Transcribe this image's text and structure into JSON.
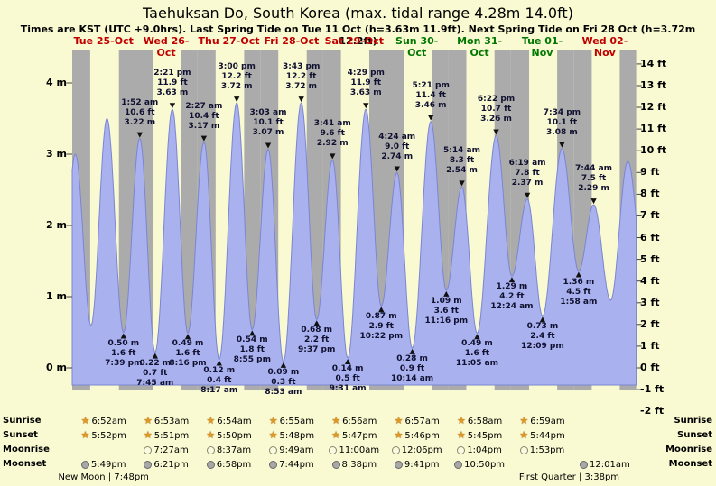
{
  "title": "Taehuksan Do, South Korea (max. tidal range 4.28m 14.0ft)",
  "subtitle": "Times are KST (UTC +9.0hrs). Last Spring Tide on Tue 11 Oct (h=3.63m 11.9ft). Next Spring Tide on Fri 28 Oct (h=3.72m 12.2ft)",
  "days": [
    {
      "label": "Tue 25-Oct",
      "color": "#c00000"
    },
    {
      "label": "Wed 26-Oct",
      "color": "#c00000"
    },
    {
      "label": "Thu 27-Oct",
      "color": "#c00000"
    },
    {
      "label": "Fri 28-Oct",
      "color": "#c00000"
    },
    {
      "label": "Sat 29-Oct",
      "color": "#c00000"
    },
    {
      "label": "Sun 30-Oct",
      "color": "#007700"
    },
    {
      "label": "Mon 31-Oct",
      "color": "#007700"
    },
    {
      "label": "Tue 01-Nov",
      "color": "#007700"
    },
    {
      "label": "Wed 02-Nov",
      "color": "#c00000"
    }
  ],
  "y_axis": {
    "left_labels": [
      "4 m",
      "3 m",
      "2 m",
      "1 m",
      "0 m"
    ],
    "right_labels": [
      "14 ft",
      "13 ft",
      "12 ft",
      "11 ft",
      "10 ft",
      "9 ft",
      "8 ft",
      "7 ft",
      "6 ft",
      "5 ft",
      "4 ft",
      "3 ft",
      "2 ft",
      "1 ft",
      "0 ft",
      "-1 ft",
      "-2 ft"
    ]
  },
  "chart_data": {
    "type": "area",
    "description": "Semidiurnal tide height curve over 9 days, day/night bands, labeled high and low tides",
    "y_unit_left": "m",
    "y_unit_right": "ft",
    "ylim_m": [
      -0.33,
      4.47
    ],
    "x_range_days": 9,
    "tide_events": [
      {
        "day": 0,
        "type": "low",
        "t_hours": 19.65,
        "height_m": 0.5,
        "height_ft": 1.6,
        "time": "7:39 pm",
        "lines": [
          "0.50 m",
          "1.6 ft",
          "7:39 pm"
        ]
      },
      {
        "day": 1,
        "type": "high",
        "t_hours": 25.87,
        "height_m": 3.22,
        "height_ft": 10.6,
        "time": "1:52 am",
        "lines": [
          "1:52 am",
          "10.6 ft",
          "3.22 m"
        ]
      },
      {
        "day": 1,
        "type": "low",
        "t_hours": 31.75,
        "height_m": 0.22,
        "height_ft": 0.7,
        "time": "7:45 am",
        "lines": [
          "0.22 m",
          "0.7 ft",
          "7:45 am"
        ]
      },
      {
        "day": 1,
        "type": "high",
        "t_hours": 38.35,
        "height_m": 3.63,
        "height_ft": 11.9,
        "time": "2:21 pm",
        "lines": [
          "2:21 pm",
          "11.9 ft",
          "3.63 m"
        ]
      },
      {
        "day": 1,
        "type": "low",
        "t_hours": 44.27,
        "height_m": 0.49,
        "height_ft": 1.6,
        "time": "8:16 pm",
        "lines": [
          "0.49 m",
          "1.6 ft",
          "8:16 pm"
        ]
      },
      {
        "day": 2,
        "type": "high",
        "t_hours": 50.45,
        "height_m": 3.17,
        "height_ft": 10.4,
        "time": "2:27 am",
        "lines": [
          "2:27 am",
          "10.4 ft",
          "3.17 m"
        ]
      },
      {
        "day": 2,
        "type": "low",
        "t_hours": 56.28,
        "height_m": 0.12,
        "height_ft": 0.4,
        "time": "8:17 am",
        "lines": [
          "0.12 m",
          "0.4 ft",
          "8:17 am"
        ]
      },
      {
        "day": 2,
        "type": "high",
        "t_hours": 63.0,
        "height_m": 3.72,
        "height_ft": 12.2,
        "time": "3:00 pm",
        "lines": [
          "3:00 pm",
          "12.2 ft",
          "3.72 m"
        ]
      },
      {
        "day": 2,
        "type": "low",
        "t_hours": 68.92,
        "height_m": 0.54,
        "height_ft": 1.8,
        "time": "8:55 pm",
        "lines": [
          "0.54 m",
          "1.8 ft",
          "8:55 pm"
        ]
      },
      {
        "day": 3,
        "type": "high",
        "t_hours": 75.05,
        "height_m": 3.07,
        "height_ft": 10.1,
        "time": "3:03 am",
        "lines": [
          "3:03 am",
          "10.1 ft",
          "3.07 m"
        ]
      },
      {
        "day": 3,
        "type": "low",
        "t_hours": 80.88,
        "height_m": 0.09,
        "height_ft": 0.3,
        "time": "8:53 am",
        "lines": [
          "0.09 m",
          "0.3 ft",
          "8:53 am"
        ]
      },
      {
        "day": 3,
        "type": "high",
        "t_hours": 87.72,
        "height_m": 3.72,
        "height_ft": 12.2,
        "time": "3:43 pm",
        "lines": [
          "3:43 pm",
          "12.2 ft",
          "3.72 m"
        ]
      },
      {
        "day": 3,
        "type": "low",
        "t_hours": 93.62,
        "height_m": 0.68,
        "height_ft": 2.2,
        "time": "9:37 pm",
        "lines": [
          "0.68 m",
          "2.2 ft",
          "9:37 pm"
        ]
      },
      {
        "day": 4,
        "type": "high",
        "t_hours": 99.68,
        "height_m": 2.92,
        "height_ft": 9.6,
        "time": "3:41 am",
        "lines": [
          "3:41 am",
          "9.6 ft",
          "2.92 m"
        ]
      },
      {
        "day": 4,
        "type": "low",
        "t_hours": 105.52,
        "height_m": 0.14,
        "height_ft": 0.5,
        "time": "9:31 am",
        "lines": [
          "0.14 m",
          "0.5 ft",
          "9:31 am"
        ]
      },
      {
        "day": 4,
        "type": "high",
        "t_hours": 112.48,
        "height_m": 3.63,
        "height_ft": 11.9,
        "time": "4:29 pm",
        "lines": [
          "4:29 pm",
          "11.9 ft",
          "3.63 m"
        ]
      },
      {
        "day": 4,
        "type": "low",
        "t_hours": 118.37,
        "height_m": 0.87,
        "height_ft": 2.9,
        "time": "10:22 pm",
        "lines": [
          "0.87 m",
          "2.9 ft",
          "10:22 pm"
        ]
      },
      {
        "day": 5,
        "type": "high",
        "t_hours": 124.4,
        "height_m": 2.74,
        "height_ft": 9.0,
        "time": "4:24 am",
        "lines": [
          "4:24 am",
          "9.0 ft",
          "2.74 m"
        ]
      },
      {
        "day": 5,
        "type": "low",
        "t_hours": 130.23,
        "height_m": 0.28,
        "height_ft": 0.9,
        "time": "10:14 am",
        "lines": [
          "0.28 m",
          "0.9 ft",
          "10:14 am"
        ]
      },
      {
        "day": 5,
        "type": "high",
        "t_hours": 137.35,
        "height_m": 3.46,
        "height_ft": 11.4,
        "time": "5:21 pm",
        "lines": [
          "5:21 pm",
          "11.4 ft",
          "3.46 m"
        ]
      },
      {
        "day": 5,
        "type": "low",
        "t_hours": 143.27,
        "height_m": 1.09,
        "height_ft": 3.6,
        "time": "11:16 pm",
        "lines": [
          "1.09 m",
          "3.6 ft",
          "11:16 pm"
        ]
      },
      {
        "day": 6,
        "type": "high",
        "t_hours": 149.23,
        "height_m": 2.54,
        "height_ft": 8.3,
        "time": "5:14 am",
        "lines": [
          "5:14 am",
          "8.3 ft",
          "2.54 m"
        ]
      },
      {
        "day": 6,
        "type": "low",
        "t_hours": 155.08,
        "height_m": 0.49,
        "height_ft": 1.6,
        "time": "11:05 am",
        "lines": [
          "0.49 m",
          "1.6 ft",
          "11:05 am"
        ]
      },
      {
        "day": 6,
        "type": "high",
        "t_hours": 162.37,
        "height_m": 3.26,
        "height_ft": 10.7,
        "time": "6:22 pm",
        "lines": [
          "6:22 pm",
          "10.7 ft",
          "3.26 m"
        ]
      },
      {
        "day": 7,
        "type": "low",
        "t_hours": 168.4,
        "height_m": 1.29,
        "height_ft": 4.2,
        "time": "12:24 am",
        "lines": [
          "1.29 m",
          "4.2 ft",
          "12:24 am"
        ]
      },
      {
        "day": 7,
        "type": "high",
        "t_hours": 174.32,
        "height_m": 2.37,
        "height_ft": 7.8,
        "time": "6:19 am",
        "lines": [
          "6:19 am",
          "7.8 ft",
          "2.37 m"
        ]
      },
      {
        "day": 7,
        "type": "low",
        "t_hours": 180.15,
        "height_m": 0.73,
        "height_ft": 2.4,
        "time": "12:09 pm",
        "lines": [
          "0.73 m",
          "2.4 ft",
          "12:09 pm"
        ]
      },
      {
        "day": 7,
        "type": "high",
        "t_hours": 187.57,
        "height_m": 3.08,
        "height_ft": 10.1,
        "time": "7:34 pm",
        "lines": [
          "7:34 pm",
          "10.1 ft",
          "3.08 m"
        ]
      },
      {
        "day": 8,
        "type": "low",
        "t_hours": 193.97,
        "height_m": 1.36,
        "height_ft": 4.5,
        "time": "1:58 am",
        "lines": [
          "1.36 m",
          "4.5 ft",
          "1:58 am"
        ]
      },
      {
        "day": 8,
        "type": "high",
        "t_hours": 199.73,
        "height_m": 2.29,
        "height_ft": 7.5,
        "time": "7:44 am",
        "lines": [
          "7:44 am",
          "7.5 ft",
          "2.29 m"
        ]
      }
    ],
    "curve_shape_points": [
      {
        "t_hours": -5.0,
        "height_m": 0.55
      },
      {
        "t_hours": 1.2,
        "height_m": 3.0
      },
      {
        "t_hours": 7.2,
        "height_m": 0.6
      },
      {
        "t_hours": 13.3,
        "height_m": 3.5
      },
      {
        "t_hours": 206.2,
        "height_m": 0.95
      },
      {
        "t_hours": 212.8,
        "height_m": 2.9
      },
      {
        "t_hours": 219.0,
        "height_m": 1.4
      }
    ]
  },
  "astro": {
    "rows": [
      {
        "label": "Sunrise",
        "icon": "sunrise-star",
        "entries": [
          {
            "day": 0,
            "time": "6:52am"
          },
          {
            "day": 1,
            "time": "6:53am"
          },
          {
            "day": 2,
            "time": "6:54am"
          },
          {
            "day": 3,
            "time": "6:55am"
          },
          {
            "day": 4,
            "time": "6:56am"
          },
          {
            "day": 5,
            "time": "6:57am"
          },
          {
            "day": 6,
            "time": "6:58am"
          },
          {
            "day": 7,
            "time": "6:59am"
          }
        ]
      },
      {
        "label": "Sunset",
        "icon": "sunset-star",
        "entries": [
          {
            "day": 0,
            "time": "5:52pm"
          },
          {
            "day": 1,
            "time": "5:51pm"
          },
          {
            "day": 2,
            "time": "5:50pm"
          },
          {
            "day": 3,
            "time": "5:48pm"
          },
          {
            "day": 4,
            "time": "5:47pm"
          },
          {
            "day": 5,
            "time": "5:46pm"
          },
          {
            "day": 6,
            "time": "5:45pm"
          },
          {
            "day": 7,
            "time": "5:44pm"
          }
        ]
      },
      {
        "label": "Moonrise",
        "icon": "moonrise-circle",
        "entries": [
          {
            "day": 1,
            "time": "7:27am"
          },
          {
            "day": 2,
            "time": "8:37am"
          },
          {
            "day": 3,
            "time": "9:49am"
          },
          {
            "day": 4,
            "time": "11:00am"
          },
          {
            "day": 5,
            "time": "12:06pm"
          },
          {
            "day": 6,
            "time": "1:04pm"
          },
          {
            "day": 7,
            "time": "1:53pm"
          }
        ]
      },
      {
        "label": "Moonset",
        "icon": "moonset-circle",
        "entries": [
          {
            "day": 0,
            "time": "5:49pm"
          },
          {
            "day": 1,
            "time": "6:21pm"
          },
          {
            "day": 2,
            "time": "6:58pm"
          },
          {
            "day": 3,
            "time": "7:44pm"
          },
          {
            "day": 4,
            "time": "8:38pm"
          },
          {
            "day": 5,
            "time": "9:41pm"
          },
          {
            "day": 6,
            "time": "10:50pm"
          },
          {
            "day": 8,
            "time": "12:01am"
          }
        ]
      }
    ],
    "phases": [
      {
        "day": 0,
        "label": "New Moon | 7:48pm"
      },
      {
        "day": 7,
        "label": "First Quarter | 3:38pm"
      }
    ]
  },
  "colors": {
    "background": "#FAFAD2",
    "night_band": "#ABABAB",
    "curve_fill": "#A9B2EE",
    "curve_stroke": "#7B85D2",
    "tide_label_text": "#101030",
    "star": "#E09820"
  }
}
